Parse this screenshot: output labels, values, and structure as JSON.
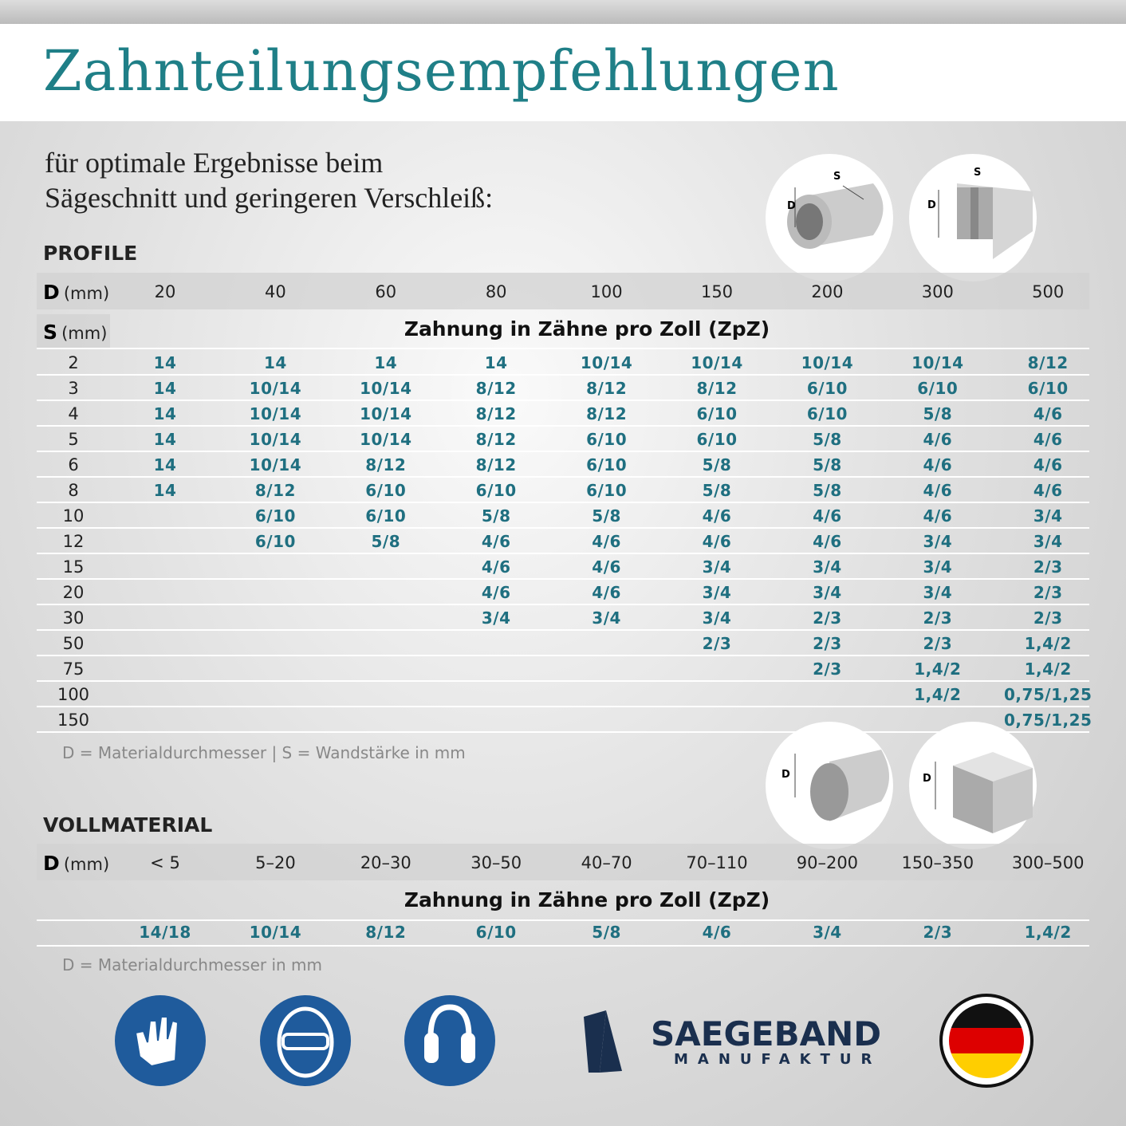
{
  "header": {
    "title": "Zahnteilungsempfehlungen",
    "subtitle": [
      "für optimale Ergebnisse beim",
      "Sägeschnitt und geringeren Verschleiß:"
    ]
  },
  "diagram_labels": {
    "tube_d": "D",
    "tube_s": "S",
    "beam_d": "D",
    "beam_s": "S",
    "rod_d": "D",
    "bar_d": "D"
  },
  "profile": {
    "heading": "PROFILE",
    "d_label": "D",
    "d_unit": "(mm)",
    "s_label": "S",
    "s_unit": "(mm)",
    "caption": "Zahnung in Zähne pro Zoll (ZpZ)",
    "columns": [
      "20",
      "40",
      "60",
      "80",
      "100",
      "150",
      "200",
      "300",
      "500"
    ],
    "rows": [
      {
        "s": "2",
        "values": [
          "14",
          "14",
          "14",
          "14",
          "10/14",
          "10/14",
          "10/14",
          "10/14",
          "8/12"
        ]
      },
      {
        "s": "3",
        "values": [
          "14",
          "10/14",
          "10/14",
          "8/12",
          "8/12",
          "8/12",
          "6/10",
          "6/10",
          "6/10"
        ]
      },
      {
        "s": "4",
        "values": [
          "14",
          "10/14",
          "10/14",
          "8/12",
          "8/12",
          "6/10",
          "6/10",
          "5/8",
          "4/6"
        ]
      },
      {
        "s": "5",
        "values": [
          "14",
          "10/14",
          "10/14",
          "8/12",
          "6/10",
          "6/10",
          "5/8",
          "4/6",
          "4/6"
        ]
      },
      {
        "s": "6",
        "values": [
          "14",
          "10/14",
          "8/12",
          "8/12",
          "6/10",
          "5/8",
          "5/8",
          "4/6",
          "4/6"
        ]
      },
      {
        "s": "8",
        "values": [
          "14",
          "8/12",
          "6/10",
          "6/10",
          "6/10",
          "5/8",
          "5/8",
          "4/6",
          "4/6"
        ]
      },
      {
        "s": "10",
        "values": [
          null,
          "6/10",
          "6/10",
          "5/8",
          "5/8",
          "4/6",
          "4/6",
          "4/6",
          "3/4"
        ]
      },
      {
        "s": "12",
        "values": [
          null,
          "6/10",
          "5/8",
          "4/6",
          "4/6",
          "4/6",
          "4/6",
          "3/4",
          "3/4"
        ]
      },
      {
        "s": "15",
        "values": [
          null,
          null,
          null,
          "4/6",
          "4/6",
          "3/4",
          "3/4",
          "3/4",
          "2/3"
        ]
      },
      {
        "s": "20",
        "values": [
          null,
          null,
          null,
          "4/6",
          "4/6",
          "3/4",
          "3/4",
          "3/4",
          "2/3"
        ]
      },
      {
        "s": "30",
        "values": [
          null,
          null,
          null,
          "3/4",
          "3/4",
          "3/4",
          "2/3",
          "2/3",
          "2/3"
        ]
      },
      {
        "s": "50",
        "values": [
          null,
          null,
          null,
          null,
          null,
          "2/3",
          "2/3",
          "2/3",
          "1,4/2"
        ]
      },
      {
        "s": "75",
        "values": [
          null,
          null,
          null,
          null,
          null,
          null,
          "2/3",
          "1,4/2",
          "1,4/2"
        ]
      },
      {
        "s": "100",
        "values": [
          null,
          null,
          null,
          null,
          null,
          null,
          null,
          "1,4/2",
          "0,75/1,25"
        ]
      },
      {
        "s": "150",
        "values": [
          null,
          null,
          null,
          null,
          null,
          null,
          null,
          null,
          "0,75/1,25"
        ]
      }
    ],
    "note": "D = Materialdurchmesser | S = Wandstärke in mm"
  },
  "vollmaterial": {
    "heading": "VOLLMATERIAL",
    "d_label": "D",
    "d_unit": "(mm)",
    "caption": "Zahnung in Zähne pro Zoll (ZpZ)",
    "columns": [
      "< 5",
      "5–20",
      "20–30",
      "30–50",
      "40–70",
      "70–110",
      "90–200",
      "150–350",
      "300–500"
    ],
    "values": [
      "14/18",
      "10/14",
      "8/12",
      "6/10",
      "5/8",
      "4/6",
      "3/4",
      "2/3",
      "1,4/2"
    ],
    "note": "D = Materialdurchmesser in mm"
  },
  "logo": {
    "name": "SAEGEBAND",
    "tagline": "MANUFAKTUR"
  }
}
